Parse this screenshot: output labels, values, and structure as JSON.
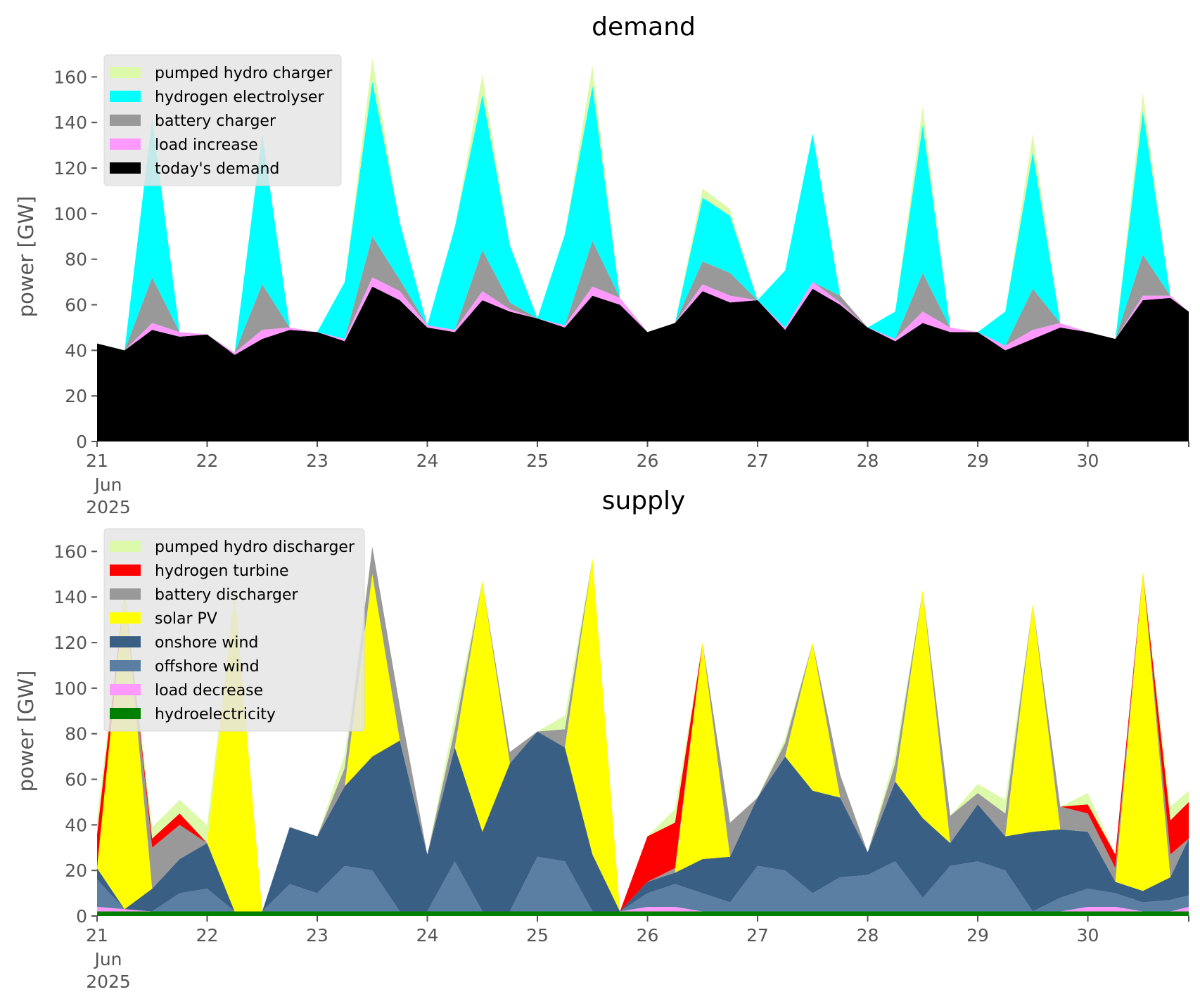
{
  "chart_data": [
    {
      "type": "area",
      "stacked": true,
      "title": "demand",
      "xlabel": "",
      "ylabel": "power [GW]",
      "ylim": [
        0,
        170
      ],
      "yticks": [
        0,
        20,
        40,
        60,
        80,
        100,
        120,
        140,
        160
      ],
      "xlim": [
        "2025-06-21 00:00",
        "2025-06-30 22:00"
      ],
      "xticks": [
        {
          "date": "2025-06-21",
          "label": "21",
          "sublabels": [
            "Jun",
            "2025"
          ]
        },
        {
          "date": "2025-06-22",
          "label": "22"
        },
        {
          "date": "2025-06-23",
          "label": "23"
        },
        {
          "date": "2025-06-24",
          "label": "24"
        },
        {
          "date": "2025-06-25",
          "label": "25"
        },
        {
          "date": "2025-06-26",
          "label": "26"
        },
        {
          "date": "2025-06-27",
          "label": "27"
        },
        {
          "date": "2025-06-28",
          "label": "28"
        },
        {
          "date": "2025-06-29",
          "label": "29"
        },
        {
          "date": "2025-06-30",
          "label": "30"
        }
      ],
      "grid": false,
      "legend": "top-left",
      "x": [
        "2025-06-21 00:00",
        "2025-06-21 06:00",
        "2025-06-21 12:00",
        "2025-06-21 18:00",
        "2025-06-22 00:00",
        "2025-06-22 06:00",
        "2025-06-22 12:00",
        "2025-06-22 18:00",
        "2025-06-23 00:00",
        "2025-06-23 06:00",
        "2025-06-23 12:00",
        "2025-06-23 18:00",
        "2025-06-24 00:00",
        "2025-06-24 06:00",
        "2025-06-24 12:00",
        "2025-06-24 18:00",
        "2025-06-25 00:00",
        "2025-06-25 06:00",
        "2025-06-25 12:00",
        "2025-06-25 18:00",
        "2025-06-26 00:00",
        "2025-06-26 06:00",
        "2025-06-26 12:00",
        "2025-06-26 18:00",
        "2025-06-27 00:00",
        "2025-06-27 06:00",
        "2025-06-27 12:00",
        "2025-06-27 18:00",
        "2025-06-28 00:00",
        "2025-06-28 06:00",
        "2025-06-28 12:00",
        "2025-06-28 18:00",
        "2025-06-29 00:00",
        "2025-06-29 06:00",
        "2025-06-29 12:00",
        "2025-06-29 18:00",
        "2025-06-30 00:00",
        "2025-06-30 06:00",
        "2025-06-30 12:00",
        "2025-06-30 18:00",
        "2025-06-30 22:00"
      ],
      "series": [
        {
          "name": "today's demand",
          "color": "#000000",
          "values": [
            43,
            40,
            49,
            46,
            47,
            38,
            45,
            49,
            48,
            44,
            68,
            62,
            50,
            48,
            62,
            57,
            54,
            50,
            64,
            60,
            48,
            52,
            66,
            61,
            62,
            49,
            67,
            60,
            50,
            44,
            52,
            48,
            48,
            40,
            45,
            50,
            48,
            45,
            62,
            63,
            57
          ]
        },
        {
          "name": "load increase",
          "color": "#ff99ff",
          "values": [
            0,
            0,
            3,
            2,
            0,
            1,
            4,
            1,
            0,
            1,
            4,
            4,
            1,
            1,
            4,
            1,
            0,
            1,
            4,
            3,
            0,
            0,
            3,
            3,
            0,
            1,
            3,
            1,
            0,
            1,
            5,
            2,
            0,
            2,
            4,
            2,
            0,
            0,
            2,
            1,
            0
          ]
        },
        {
          "name": "battery charger",
          "color": "#999999",
          "values": [
            0,
            0,
            20,
            0,
            0,
            0,
            20,
            0,
            0,
            0,
            18,
            5,
            0,
            0,
            18,
            3,
            0,
            0,
            20,
            0,
            0,
            0,
            10,
            10,
            0,
            0,
            0,
            3,
            0,
            0,
            17,
            0,
            0,
            0,
            18,
            0,
            0,
            0,
            18,
            0,
            0
          ]
        },
        {
          "name": "hydrogen electrolyser",
          "color": "#00ffff",
          "values": [
            0,
            0,
            70,
            0,
            0,
            0,
            66,
            0,
            0,
            25,
            68,
            25,
            0,
            45,
            68,
            25,
            0,
            40,
            68,
            0,
            0,
            0,
            28,
            25,
            0,
            25,
            65,
            0,
            0,
            12,
            65,
            0,
            0,
            15,
            60,
            0,
            0,
            0,
            63,
            0,
            0
          ]
        },
        {
          "name": "pumped hydro charger",
          "color": "#ddfaaa",
          "values": [
            0,
            0,
            0,
            0,
            0,
            0,
            0,
            0,
            0,
            0,
            10,
            0,
            0,
            0,
            9,
            0,
            0,
            0,
            9,
            0,
            0,
            0,
            4,
            3,
            0,
            0,
            0,
            0,
            0,
            0,
            8,
            0,
            0,
            0,
            8,
            0,
            0,
            0,
            8,
            0,
            0
          ]
        }
      ]
    },
    {
      "type": "area",
      "stacked": true,
      "title": "supply",
      "xlabel": "",
      "ylabel": "power [GW]",
      "ylim": [
        0,
        170
      ],
      "yticks": [
        0,
        20,
        40,
        60,
        80,
        100,
        120,
        140,
        160
      ],
      "xlim": [
        "2025-06-21 00:00",
        "2025-06-30 22:00"
      ],
      "xticks": [
        {
          "date": "2025-06-21",
          "label": "21",
          "sublabels": [
            "Jun",
            "2025"
          ]
        },
        {
          "date": "2025-06-22",
          "label": "22"
        },
        {
          "date": "2025-06-23",
          "label": "23"
        },
        {
          "date": "2025-06-24",
          "label": "24"
        },
        {
          "date": "2025-06-25",
          "label": "25"
        },
        {
          "date": "2025-06-26",
          "label": "26"
        },
        {
          "date": "2025-06-27",
          "label": "27"
        },
        {
          "date": "2025-06-28",
          "label": "28"
        },
        {
          "date": "2025-06-29",
          "label": "29"
        },
        {
          "date": "2025-06-30",
          "label": "30"
        }
      ],
      "grid": false,
      "legend": "top-left",
      "x": [
        "2025-06-21 00:00",
        "2025-06-21 06:00",
        "2025-06-21 12:00",
        "2025-06-21 18:00",
        "2025-06-22 00:00",
        "2025-06-22 06:00",
        "2025-06-22 12:00",
        "2025-06-22 18:00",
        "2025-06-23 00:00",
        "2025-06-23 06:00",
        "2025-06-23 12:00",
        "2025-06-23 18:00",
        "2025-06-24 00:00",
        "2025-06-24 06:00",
        "2025-06-24 12:00",
        "2025-06-24 18:00",
        "2025-06-25 00:00",
        "2025-06-25 06:00",
        "2025-06-25 12:00",
        "2025-06-25 18:00",
        "2025-06-26 00:00",
        "2025-06-26 06:00",
        "2025-06-26 12:00",
        "2025-06-26 18:00",
        "2025-06-27 00:00",
        "2025-06-27 06:00",
        "2025-06-27 12:00",
        "2025-06-27 18:00",
        "2025-06-28 00:00",
        "2025-06-28 06:00",
        "2025-06-28 12:00",
        "2025-06-28 18:00",
        "2025-06-29 00:00",
        "2025-06-29 06:00",
        "2025-06-29 12:00",
        "2025-06-29 18:00",
        "2025-06-30 00:00",
        "2025-06-30 06:00",
        "2025-06-30 12:00",
        "2025-06-30 18:00",
        "2025-06-30 22:00"
      ],
      "series": [
        {
          "name": "hydroelectricity",
          "color": "#008000",
          "values": [
            2,
            2,
            2,
            2,
            2,
            2,
            2,
            2,
            2,
            2,
            2,
            2,
            2,
            2,
            2,
            2,
            2,
            2,
            2,
            2,
            2,
            2,
            2,
            2,
            2,
            2,
            2,
            2,
            2,
            2,
            2,
            2,
            2,
            2,
            2,
            2,
            2,
            2,
            2,
            2,
            2
          ]
        },
        {
          "name": "load decrease",
          "color": "#ff99ff",
          "values": [
            2,
            1,
            0,
            0,
            0,
            0,
            0,
            0,
            0,
            0,
            0,
            0,
            0,
            0,
            0,
            0,
            0,
            0,
            0,
            0,
            2,
            2,
            0,
            0,
            0,
            0,
            0,
            0,
            0,
            0,
            0,
            0,
            0,
            0,
            0,
            0,
            2,
            2,
            0,
            0,
            2
          ]
        },
        {
          "name": "offshore wind",
          "color": "#5b7fa3",
          "values": [
            12,
            0,
            0,
            8,
            10,
            0,
            0,
            12,
            8,
            20,
            18,
            0,
            0,
            22,
            0,
            0,
            24,
            22,
            0,
            0,
            6,
            10,
            8,
            4,
            20,
            18,
            8,
            15,
            16,
            22,
            6,
            20,
            22,
            18,
            0,
            6,
            8,
            6,
            4,
            5,
            5
          ]
        },
        {
          "name": "onshore wind",
          "color": "#3a5f84",
          "values": [
            5,
            0,
            10,
            15,
            20,
            0,
            0,
            25,
            25,
            35,
            50,
            75,
            25,
            50,
            35,
            65,
            55,
            50,
            25,
            0,
            5,
            5,
            15,
            20,
            30,
            50,
            45,
            35,
            10,
            35,
            35,
            10,
            25,
            15,
            35,
            30,
            25,
            5,
            5,
            10,
            25
          ]
        },
        {
          "name": "solar PV",
          "color": "#ffff00",
          "values": [
            0,
            140,
            0,
            0,
            0,
            140,
            0,
            0,
            0,
            0,
            80,
            0,
            0,
            0,
            110,
            0,
            0,
            0,
            130,
            0,
            0,
            0,
            95,
            0,
            0,
            0,
            65,
            0,
            0,
            0,
            100,
            0,
            0,
            0,
            100,
            0,
            0,
            0,
            140,
            0,
            0
          ]
        },
        {
          "name": "battery discharger",
          "color": "#999999",
          "values": [
            0,
            0,
            18,
            15,
            0,
            0,
            0,
            0,
            0,
            8,
            12,
            15,
            0,
            8,
            0,
            5,
            0,
            8,
            0,
            0,
            0,
            2,
            0,
            15,
            0,
            6,
            0,
            10,
            0,
            8,
            0,
            12,
            5,
            10,
            0,
            10,
            8,
            6,
            0,
            10,
            0
          ]
        },
        {
          "name": "hydrogen turbine",
          "color": "#ff0000",
          "values": [
            15,
            0,
            4,
            5,
            0,
            0,
            0,
            0,
            0,
            0,
            0,
            0,
            0,
            0,
            0,
            0,
            0,
            0,
            0,
            0,
            20,
            20,
            0,
            0,
            0,
            0,
            0,
            0,
            0,
            0,
            0,
            0,
            0,
            0,
            0,
            0,
            4,
            6,
            0,
            15,
            16
          ]
        },
        {
          "name": "pumped hydro discharger",
          "color": "#ddfaaa",
          "values": [
            7,
            0,
            5,
            6,
            8,
            0,
            0,
            0,
            0,
            6,
            0,
            0,
            0,
            6,
            0,
            0,
            0,
            6,
            0,
            0,
            0,
            6,
            0,
            0,
            0,
            2,
            0,
            0,
            0,
            4,
            0,
            0,
            4,
            6,
            0,
            0,
            5,
            0,
            0,
            6,
            5
          ]
        }
      ]
    }
  ]
}
